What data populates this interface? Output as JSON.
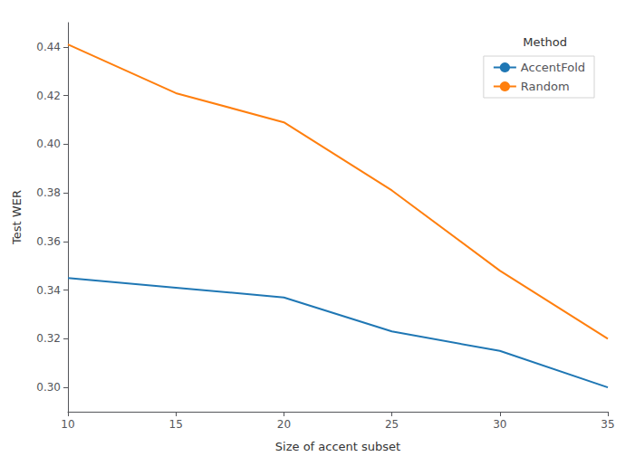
{
  "chart_data": {
    "type": "line",
    "x": [
      10,
      15,
      20,
      25,
      30,
      35
    ],
    "series": [
      {
        "name": "AccentFold",
        "color": "#1f77b4",
        "values": [
          0.345,
          0.341,
          0.337,
          0.323,
          0.315,
          0.3
        ]
      },
      {
        "name": "Random",
        "color": "#ff7f0e",
        "values": [
          0.441,
          0.421,
          0.409,
          0.381,
          0.348,
          0.32
        ]
      }
    ],
    "xlabel": "Size of accent subset",
    "ylabel": "Test WER",
    "legend_title": "Method",
    "xlim": [
      10,
      35
    ],
    "ylim": [
      0.29,
      0.45
    ],
    "xticks": [
      10,
      15,
      20,
      25,
      30,
      35
    ],
    "yticks": [
      {
        "value": 0.3,
        "label": "0.30"
      },
      0.32,
      0.34,
      0.36,
      0.38,
      {
        "value": 0.4,
        "label": "0.40"
      },
      0.42,
      0.44
    ],
    "grid": false,
    "legend": "upper right"
  }
}
